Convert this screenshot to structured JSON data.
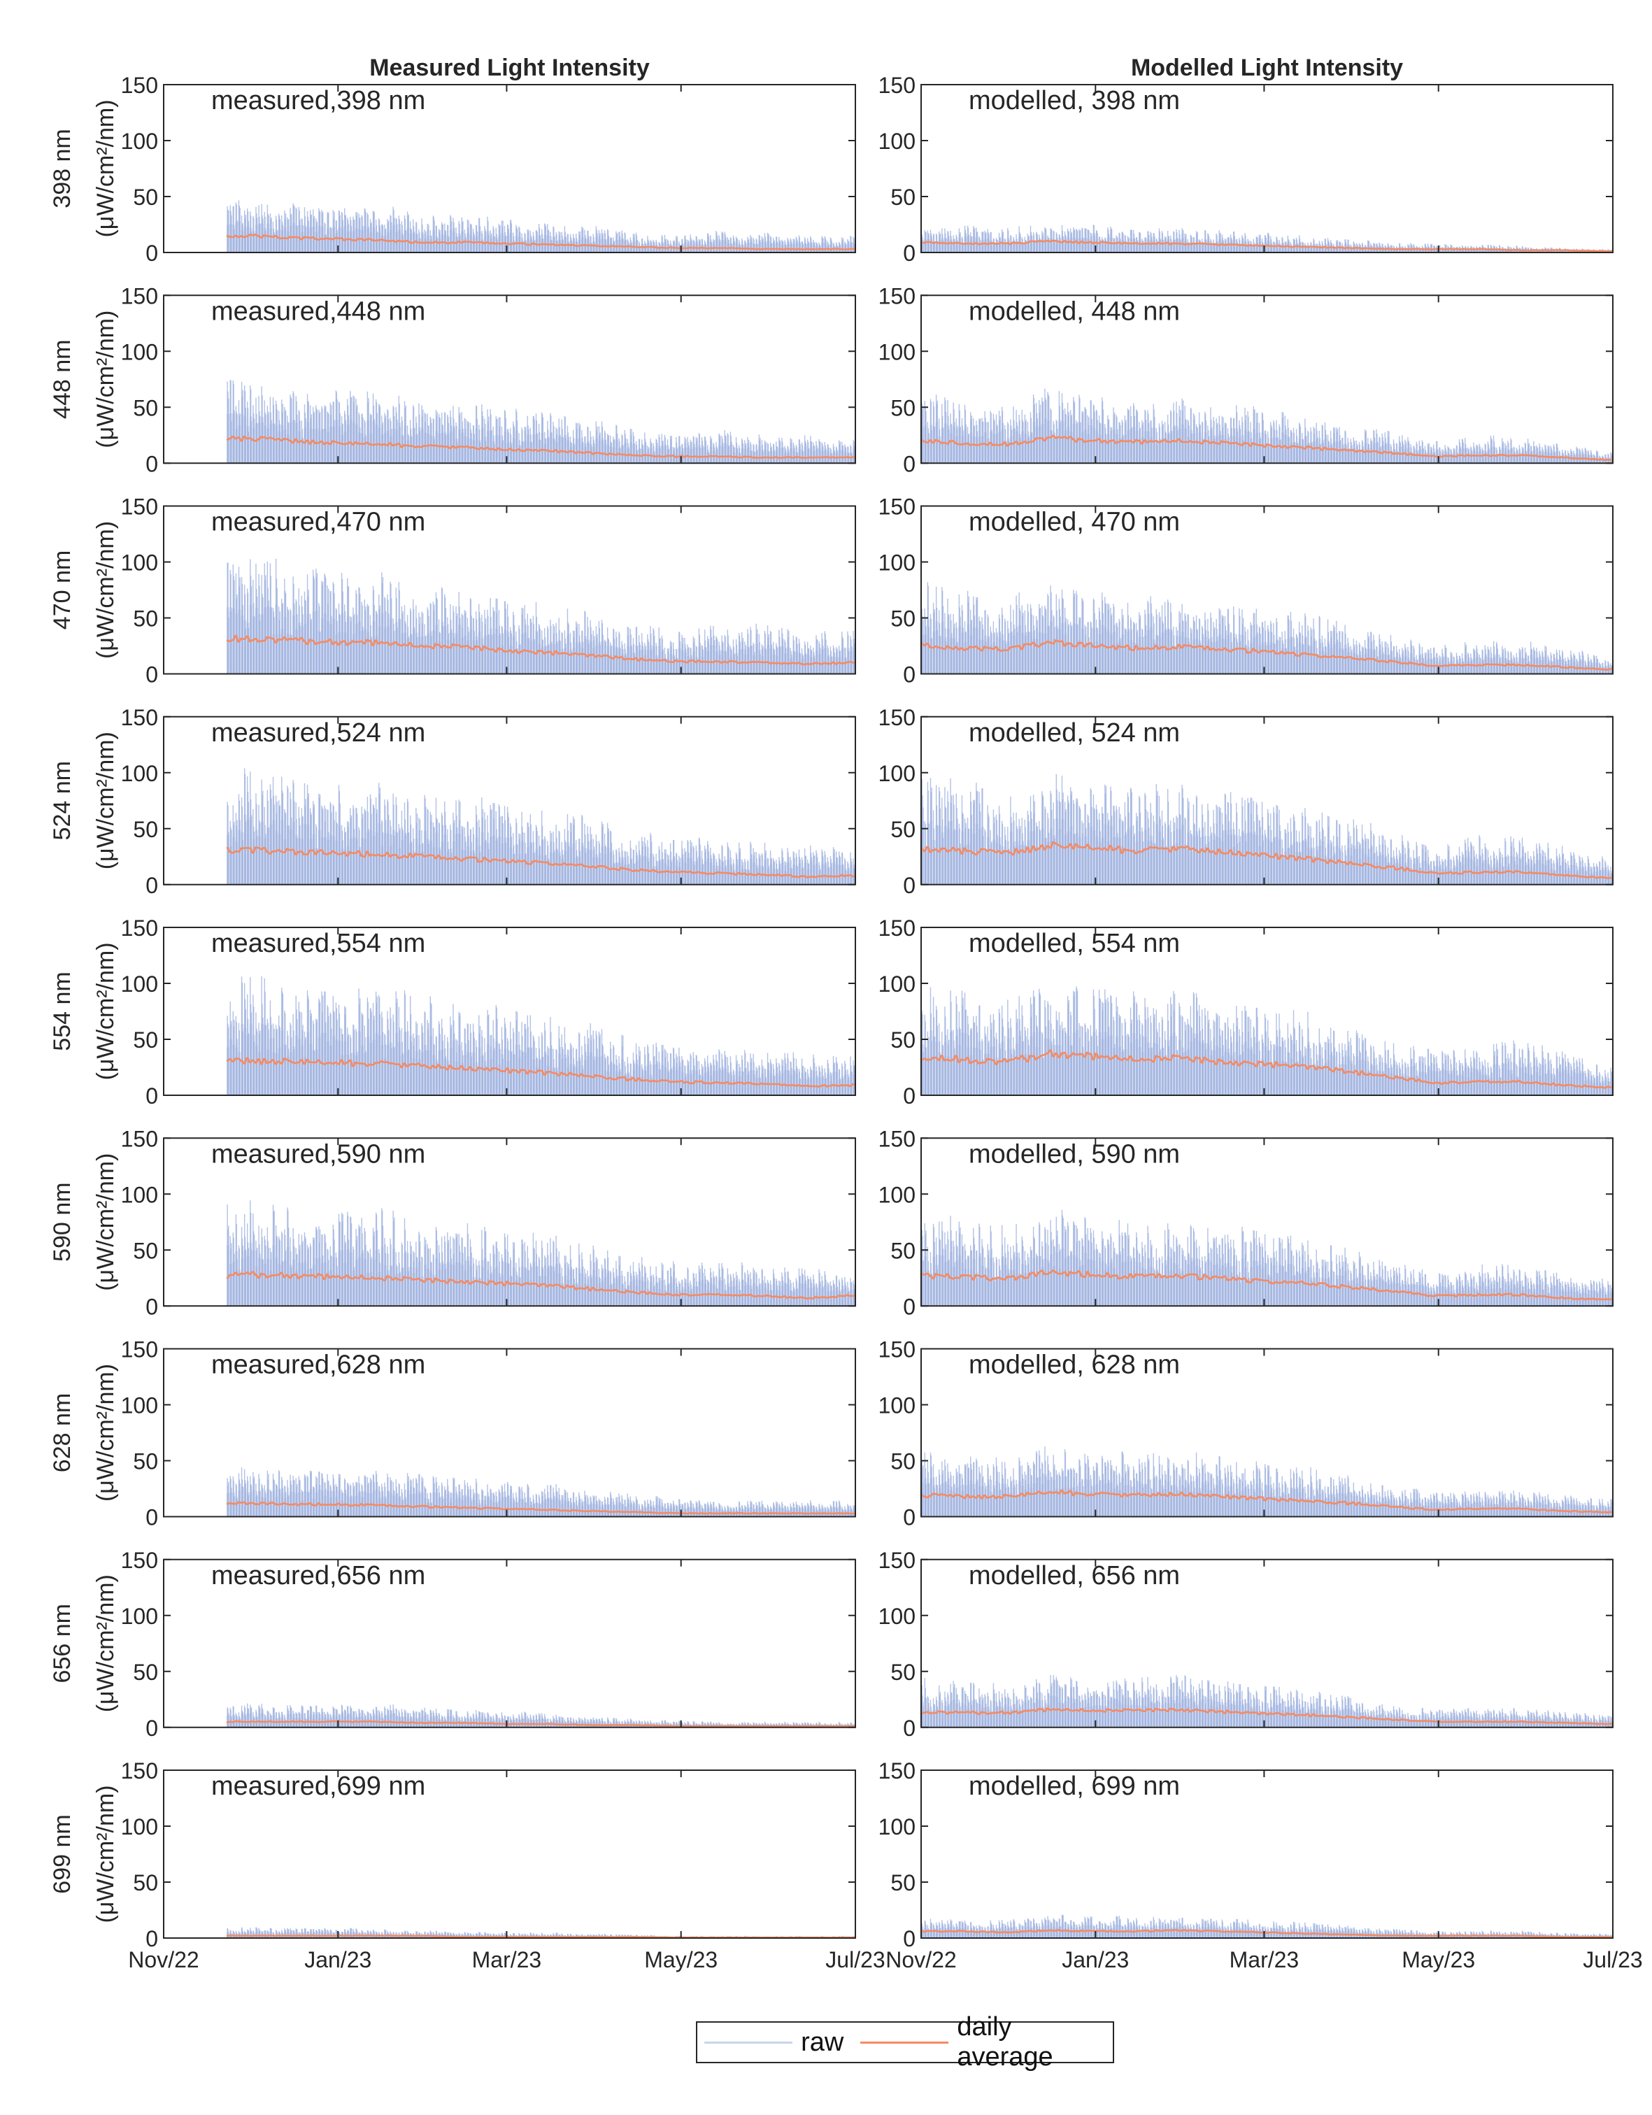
{
  "chart_data": {
    "type": "line",
    "x_axis": {
      "unit": "days since 2022-11-01",
      "range": [
        0,
        242
      ],
      "ticks": [
        0,
        61,
        120,
        181,
        242
      ],
      "tick_labels": [
        "Nov/22",
        "Jan/23",
        "Mar/23",
        "May/23",
        "Jul/23"
      ]
    },
    "y_axis": {
      "range": [
        0,
        150
      ],
      "ticks": [
        0,
        50,
        100,
        150
      ],
      "tick_labels": [
        "0",
        "50",
        "100",
        "150"
      ],
      "unit_label": "(μW/cm²/nm)"
    },
    "sample_days": [
      0,
      15,
      30,
      45,
      60,
      75,
      90,
      105,
      120,
      135,
      150,
      165,
      180,
      195,
      210,
      225,
      240
    ],
    "measured_start_day": 22,
    "columns": [
      {
        "title": "Measured Light Intensity",
        "label_prefix": "measured,"
      },
      {
        "title": "Modelled Light Intensity",
        "label_prefix": "modelled, "
      }
    ],
    "rows": [
      {
        "wavelength": "398 nm",
        "measured": {
          "label": "measured,398 nm",
          "raw_peak": [
            null,
            50,
            55,
            45,
            40,
            45,
            35,
            35,
            30,
            28,
            25,
            18,
            15,
            20,
            18,
            15,
            15
          ],
          "daily_average": [
            null,
            14,
            15,
            13,
            12,
            11,
            9,
            9,
            8,
            7,
            6,
            5,
            4,
            4,
            3,
            3,
            3
          ]
        },
        "modelled": {
          "label": "modelled, 398 nm",
          "raw_peak": [
            28,
            25,
            22,
            28,
            25,
            22,
            22,
            20,
            18,
            15,
            12,
            10,
            8,
            8,
            6,
            4,
            3
          ],
          "daily_average": [
            9,
            8,
            8,
            10,
            9,
            8,
            8,
            7,
            6,
            5,
            4,
            3,
            3,
            3,
            2,
            2,
            1
          ]
        }
      },
      {
        "wavelength": "448 nm",
        "measured": {
          "label": "measured,448 nm",
          "raw_peak": [
            null,
            75,
            80,
            70,
            65,
            70,
            55,
            55,
            50,
            45,
            40,
            30,
            25,
            30,
            28,
            25,
            22
          ],
          "daily_average": [
            null,
            22,
            22,
            20,
            18,
            17,
            15,
            14,
            12,
            11,
            9,
            7,
            6,
            6,
            5,
            5,
            5
          ]
        },
        "modelled": {
          "label": "modelled, 448 nm",
          "raw_peak": [
            65,
            55,
            55,
            68,
            60,
            55,
            58,
            55,
            50,
            45,
            35,
            30,
            20,
            25,
            25,
            20,
            10
          ],
          "daily_average": [
            20,
            18,
            17,
            23,
            20,
            19,
            20,
            18,
            16,
            14,
            11,
            9,
            6,
            7,
            7,
            5,
            3
          ]
        }
      },
      {
        "wavelength": "470 nm",
        "measured": {
          "label": "measured,470 nm",
          "raw_peak": [
            null,
            100,
            110,
            100,
            90,
            95,
            80,
            75,
            70,
            65,
            55,
            45,
            40,
            45,
            45,
            40,
            40
          ],
          "daily_average": [
            null,
            30,
            32,
            30,
            28,
            28,
            25,
            24,
            21,
            19,
            16,
            13,
            11,
            11,
            10,
            9,
            10
          ]
        },
        "modelled": {
          "label": "modelled, 470 nm",
          "raw_peak": [
            85,
            75,
            70,
            80,
            75,
            70,
            70,
            65,
            60,
            55,
            45,
            35,
            25,
            30,
            30,
            25,
            15
          ],
          "daily_average": [
            26,
            23,
            22,
            28,
            25,
            23,
            24,
            22,
            20,
            17,
            14,
            11,
            7,
            8,
            8,
            6,
            4
          ]
        }
      },
      {
        "wavelength": "524 nm",
        "measured": {
          "label": "measured,524 nm",
          "raw_peak": [
            null,
            100,
            105,
            95,
            90,
            95,
            85,
            80,
            75,
            70,
            60,
            50,
            45,
            40,
            40,
            35,
            35
          ],
          "daily_average": [
            null,
            30,
            31,
            29,
            28,
            27,
            25,
            23,
            21,
            19,
            16,
            13,
            11,
            10,
            9,
            7,
            8
          ]
        },
        "modelled": {
          "label": "modelled, 524 nm",
          "raw_peak": [
            100,
            95,
            85,
            100,
            95,
            90,
            90,
            85,
            75,
            70,
            60,
            50,
            35,
            45,
            45,
            35,
            25
          ],
          "daily_average": [
            32,
            30,
            28,
            35,
            33,
            30,
            32,
            29,
            26,
            23,
            19,
            15,
            10,
            11,
            11,
            8,
            6
          ]
        }
      },
      {
        "wavelength": "554 nm",
        "measured": {
          "label": "measured,554 nm",
          "raw_peak": [
            null,
            100,
            110,
            100,
            95,
            100,
            90,
            85,
            80,
            75,
            65,
            50,
            45,
            42,
            42,
            38,
            38
          ],
          "daily_average": [
            null,
            30,
            31,
            30,
            29,
            28,
            26,
            24,
            22,
            20,
            17,
            14,
            12,
            11,
            10,
            8,
            9
          ]
        },
        "modelled": {
          "label": "modelled, 554 nm",
          "raw_peak": [
            105,
            95,
            85,
            105,
            100,
            95,
            95,
            90,
            80,
            75,
            65,
            50,
            40,
            45,
            50,
            40,
            28
          ],
          "daily_average": [
            35,
            32,
            30,
            37,
            35,
            32,
            33,
            30,
            28,
            25,
            21,
            16,
            11,
            12,
            12,
            9,
            7
          ]
        }
      },
      {
        "wavelength": "590 nm",
        "measured": {
          "label": "measured,590 nm",
          "raw_peak": [
            null,
            90,
            95,
            90,
            85,
            90,
            80,
            75,
            70,
            65,
            55,
            45,
            40,
            40,
            40,
            35,
            35
          ],
          "daily_average": [
            null,
            27,
            28,
            27,
            26,
            25,
            23,
            22,
            20,
            18,
            15,
            12,
            10,
            10,
            9,
            7,
            9
          ]
        },
        "modelled": {
          "label": "modelled, 590 nm",
          "raw_peak": [
            85,
            80,
            75,
            88,
            82,
            78,
            80,
            75,
            68,
            62,
            52,
            40,
            30,
            38,
            38,
            32,
            25
          ],
          "daily_average": [
            27,
            26,
            24,
            30,
            28,
            26,
            27,
            25,
            22,
            20,
            17,
            13,
            9,
            10,
            10,
            7,
            6
          ]
        }
      },
      {
        "wavelength": "628 nm",
        "measured": {
          "label": "measured,628 nm",
          "raw_peak": [
            null,
            40,
            45,
            42,
            40,
            45,
            38,
            35,
            32,
            30,
            25,
            20,
            18,
            15,
            15,
            15,
            15
          ],
          "daily_average": [
            null,
            11,
            12,
            11,
            11,
            10,
            9,
            8,
            7,
            6,
            5,
            4,
            3,
            3,
            3,
            3,
            3
          ]
        },
        "modelled": {
          "label": "modelled, 628 nm",
          "raw_peak": [
            62,
            55,
            55,
            65,
            60,
            58,
            62,
            55,
            50,
            45,
            38,
            30,
            22,
            25,
            25,
            20,
            18
          ],
          "daily_average": [
            19,
            18,
            18,
            22,
            20,
            19,
            20,
            18,
            16,
            14,
            12,
            9,
            6,
            7,
            7,
            5,
            4
          ]
        }
      },
      {
        "wavelength": "656 nm",
        "measured": {
          "label": "measured,656 nm",
          "raw_peak": [
            null,
            18,
            22,
            20,
            20,
            22,
            18,
            16,
            15,
            13,
            10,
            8,
            6,
            5,
            5,
            5,
            5
          ],
          "daily_average": [
            null,
            5,
            5,
            5,
            5,
            5,
            4,
            4,
            3,
            3,
            2,
            2,
            1,
            1,
            1,
            1,
            1
          ]
        },
        "modelled": {
          "label": "modelled, 656 nm",
          "raw_peak": [
            45,
            42,
            40,
            50,
            45,
            45,
            48,
            42,
            38,
            35,
            28,
            22,
            16,
            18,
            18,
            14,
            12
          ],
          "daily_average": [
            14,
            13,
            13,
            16,
            15,
            15,
            16,
            14,
            12,
            11,
            9,
            7,
            5,
            5,
            5,
            4,
            3
          ]
        }
      },
      {
        "wavelength": "699 nm",
        "measured": {
          "label": "measured,699 nm",
          "raw_peak": [
            null,
            8,
            10,
            9,
            9,
            9,
            7,
            6,
            5,
            5,
            4,
            3,
            2,
            2,
            2,
            2,
            2
          ],
          "daily_average": [
            null,
            2,
            2,
            2,
            2,
            2,
            2,
            1,
            1,
            1,
            1,
            1,
            0.5,
            0.5,
            0.5,
            0.5,
            0.5
          ]
        },
        "modelled": {
          "label": "modelled, 699 nm",
          "raw_peak": [
            20,
            18,
            17,
            22,
            20,
            20,
            22,
            18,
            16,
            14,
            11,
            9,
            6,
            7,
            7,
            5,
            4
          ],
          "daily_average": [
            6,
            6,
            5,
            7,
            6,
            6,
            7,
            6,
            5,
            4,
            3,
            2,
            2,
            2,
            2,
            1,
            1
          ]
        }
      }
    ],
    "legend": {
      "position": "bottom-center",
      "entries": [
        "raw",
        "daily average"
      ]
    },
    "colors": {
      "raw": "#9fb2df",
      "raw_fill": "#dbe2f3",
      "daily_average": "#f58a62",
      "axis": "#262626"
    }
  }
}
